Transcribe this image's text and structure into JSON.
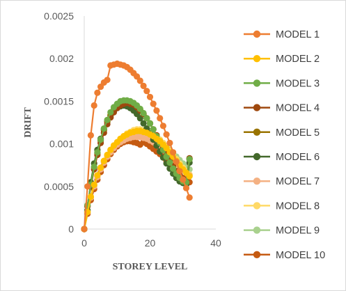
{
  "chart_data": {
    "type": "scatter",
    "xlabel": "STOREY LEVEL",
    "ylabel": "DRIFT",
    "xlim": [
      0,
      40
    ],
    "ylim": [
      0,
      0.0025
    ],
    "x_ticks": [
      "0",
      "20",
      "40"
    ],
    "y_ticks": [
      "0",
      "0.0005",
      "0.001",
      "0.0015",
      "0.002",
      "0.0025"
    ],
    "grid": false,
    "legend_position": "right",
    "series": [
      {
        "name": "MODEL 1",
        "color": "#ED7D31",
        "x": [
          0,
          1,
          2,
          3,
          4,
          5,
          6,
          7,
          8,
          9,
          10,
          11,
          12,
          13,
          14,
          15,
          16,
          17,
          18,
          19,
          20,
          21,
          22,
          23,
          24,
          25,
          26,
          27,
          28,
          29,
          30,
          31,
          32
        ],
        "y": [
          0,
          0.0005,
          0.0011,
          0.00145,
          0.0016,
          0.00167,
          0.00172,
          0.00175,
          0.00192,
          0.00193,
          0.00194,
          0.00193,
          0.00192,
          0.0019,
          0.00187,
          0.00183,
          0.00179,
          0.00174,
          0.00168,
          0.00162,
          0.00155,
          0.00147,
          0.00139,
          0.0013,
          0.00121,
          0.00111,
          0.00101,
          0.0009,
          0.00079,
          0.00068,
          0.00058,
          0.00048,
          0.00037
        ]
      },
      {
        "name": "MODEL 2",
        "color": "#FFC000",
        "x": [
          0,
          1,
          2,
          3,
          4,
          5,
          6,
          7,
          8,
          9,
          10,
          11,
          12,
          13,
          14,
          15,
          16,
          17,
          18,
          19,
          20,
          21,
          22,
          23,
          24,
          25,
          26,
          27,
          28,
          29,
          30,
          31,
          32
        ],
        "y": [
          0,
          0.0002,
          0.00038,
          0.00052,
          0.00063,
          0.00072,
          0.0008,
          0.00087,
          0.00093,
          0.00098,
          0.00102,
          0.00106,
          0.00109,
          0.00111,
          0.00113,
          0.00114,
          0.00115,
          0.00115,
          0.00114,
          0.00113,
          0.00111,
          0.00109,
          0.00106,
          0.00103,
          0.00099,
          0.00095,
          0.0009,
          0.00085,
          0.0008,
          0.00075,
          0.0007,
          0.00066,
          0.00062
        ]
      },
      {
        "name": "MODEL 3",
        "color": "#70AD47",
        "x": [
          0,
          1,
          2,
          3,
          4,
          5,
          6,
          7,
          8,
          9,
          10,
          11,
          12,
          13,
          14,
          15,
          16,
          17,
          18,
          19,
          20,
          21,
          22,
          23,
          24,
          25,
          26,
          27,
          28,
          29,
          30,
          31,
          32
        ],
        "y": [
          0,
          0.00028,
          0.00052,
          0.00073,
          0.0009,
          0.00105,
          0.00118,
          0.00128,
          0.00137,
          0.00143,
          0.00147,
          0.0015,
          0.00151,
          0.00151,
          0.0015,
          0.00148,
          0.00145,
          0.00141,
          0.00136,
          0.0013,
          0.00124,
          0.00117,
          0.00109,
          0.00101,
          0.00093,
          0.00085,
          0.00078,
          0.00071,
          0.00065,
          0.0006,
          0.00056,
          0.00055,
          0.00082
        ]
      },
      {
        "name": "MODEL 4",
        "color": "#9E480E",
        "x": [
          0,
          1,
          2,
          3,
          4,
          5,
          6,
          7,
          8,
          9,
          10,
          11,
          12,
          13,
          14,
          15,
          16,
          17,
          18,
          19,
          20,
          21,
          22,
          23,
          24,
          25,
          26,
          27,
          28,
          29,
          30,
          31,
          32
        ],
        "y": [
          0,
          0.00027,
          0.0005,
          0.0007,
          0.00087,
          0.00101,
          0.00113,
          0.00123,
          0.00131,
          0.00137,
          0.00142,
          0.00145,
          0.00147,
          0.00148,
          0.00147,
          0.00146,
          0.00143,
          0.00139,
          0.00135,
          0.0013,
          0.00124,
          0.00117,
          0.0011,
          0.00103,
          0.00095,
          0.00088,
          0.00081,
          0.00074,
          0.00068,
          0.00063,
          0.00059,
          0.00057,
          0.00083
        ]
      },
      {
        "name": "MODEL 5",
        "color": "#997300",
        "x": [
          0,
          1,
          2,
          3,
          4,
          5,
          6,
          7,
          8,
          9,
          10,
          11,
          12,
          13,
          14,
          15,
          16,
          17,
          18,
          19,
          20,
          21,
          22,
          23,
          24,
          25,
          26,
          27,
          28,
          29,
          30,
          31,
          32
        ],
        "y": [
          0,
          0.00027,
          0.00051,
          0.00072,
          0.00089,
          0.00104,
          0.00116,
          0.00126,
          0.00134,
          0.0014,
          0.00145,
          0.00148,
          0.0015,
          0.0015,
          0.00149,
          0.00147,
          0.00144,
          0.0014,
          0.00135,
          0.0013,
          0.00124,
          0.00117,
          0.0011,
          0.00102,
          0.00095,
          0.00087,
          0.0008,
          0.00073,
          0.00067,
          0.00062,
          0.00058,
          0.00056,
          0.00082
        ]
      },
      {
        "name": "MODEL 6",
        "color": "#43682B",
        "x": [
          0,
          1,
          2,
          3,
          4,
          5,
          6,
          7,
          8,
          9,
          10,
          11,
          12,
          13,
          14,
          15,
          16,
          17,
          18,
          19,
          20,
          21,
          22,
          23,
          24,
          25,
          26,
          27,
          28,
          29,
          30,
          31,
          32
        ],
        "y": [
          0,
          0.00022,
          0.00055,
          0.00077,
          0.00093,
          0.00106,
          0.00117,
          0.00126,
          0.00133,
          0.00138,
          0.00142,
          0.00144,
          0.00145,
          0.00144,
          0.00142,
          0.00139,
          0.00135,
          0.0013,
          0.00124,
          0.00118,
          0.00112,
          0.00105,
          0.00098,
          0.00091,
          0.00084,
          0.00077,
          0.00071,
          0.00065,
          0.0006,
          0.00056,
          0.00054,
          0.00052,
          0.00078
        ]
      },
      {
        "name": "MODEL 7",
        "color": "#F4B183",
        "x": [
          0,
          1,
          2,
          3,
          4,
          5,
          6,
          7,
          8,
          9,
          10,
          11,
          12,
          13,
          14,
          15,
          16,
          17,
          18,
          19,
          20,
          21,
          22,
          23,
          24,
          25,
          26,
          27,
          28,
          29,
          30,
          31,
          32
        ],
        "y": [
          0,
          0.0002,
          0.00037,
          0.0005,
          0.00061,
          0.0007,
          0.00078,
          0.00085,
          0.0009,
          0.00095,
          0.00099,
          0.00102,
          0.00104,
          0.00106,
          0.00107,
          0.00108,
          0.00108,
          0.00108,
          0.00107,
          0.00106,
          0.00104,
          0.00102,
          0.00099,
          0.00096,
          0.00093,
          0.00089,
          0.00085,
          0.00081,
          0.00077,
          0.00073,
          0.00069,
          0.00066,
          0.00063
        ]
      },
      {
        "name": "MODEL 8",
        "color": "#FFD966",
        "x": [
          0,
          1,
          2,
          3,
          4,
          5,
          6,
          7,
          8,
          9,
          10,
          11,
          12,
          13,
          14,
          15,
          16,
          17,
          18,
          19,
          20,
          21,
          22,
          23,
          24,
          25,
          26,
          27,
          28,
          29,
          30,
          31,
          32
        ],
        "y": [
          0,
          0.0002,
          0.00038,
          0.00052,
          0.00063,
          0.00072,
          0.0008,
          0.00087,
          0.00093,
          0.00098,
          0.00102,
          0.00106,
          0.00109,
          0.00112,
          0.00114,
          0.00116,
          0.00117,
          0.00117,
          0.00116,
          0.00115,
          0.00113,
          0.00111,
          0.00108,
          0.00105,
          0.00101,
          0.00097,
          0.00092,
          0.00087,
          0.00082,
          0.00077,
          0.00072,
          0.00068,
          0.00064
        ]
      },
      {
        "name": "MODEL 9",
        "color": "#A9D18E",
        "x": [
          0,
          1,
          2,
          3,
          4,
          5,
          6,
          7,
          8,
          9,
          10,
          11,
          12,
          13,
          14,
          15,
          16,
          17,
          18,
          19,
          20,
          21,
          22,
          23,
          24,
          25,
          26,
          27,
          28,
          29,
          30,
          31,
          32
        ],
        "y": [
          0,
          0.0002,
          0.00037,
          0.00051,
          0.00062,
          0.00071,
          0.00079,
          0.00086,
          0.00092,
          0.00097,
          0.00101,
          0.00104,
          0.00107,
          0.00109,
          0.00111,
          0.00112,
          0.00113,
          0.00113,
          0.00113,
          0.00112,
          0.0011,
          0.00108,
          0.00106,
          0.00103,
          0.001,
          0.00097,
          0.00093,
          0.00089,
          0.00085,
          0.00081,
          0.00077,
          0.00073,
          0.0007
        ]
      },
      {
        "name": "MODEL 10",
        "color": "#C55A11",
        "x": [
          0,
          1,
          2,
          3,
          4,
          5,
          6,
          7,
          8,
          9,
          10,
          11,
          12,
          13,
          14,
          15,
          16,
          17,
          18,
          19,
          20,
          21,
          22,
          23,
          24,
          25,
          26,
          27,
          28,
          29,
          30,
          31,
          32
        ],
        "y": [
          0,
          0.00018,
          0.00034,
          0.00047,
          0.00058,
          0.00067,
          0.00075,
          0.00082,
          0.00088,
          0.00093,
          0.00097,
          0.001,
          0.00102,
          0.00103,
          0.00103,
          0.00102,
          0.00101,
          0.00099,
          0.00102,
          0.001,
          0.00097,
          0.00094,
          0.00091,
          0.00088,
          0.00084,
          0.0008,
          0.00076,
          0.00072,
          0.00068,
          0.00064,
          0.0006,
          0.00057,
          0.00055
        ]
      }
    ]
  }
}
